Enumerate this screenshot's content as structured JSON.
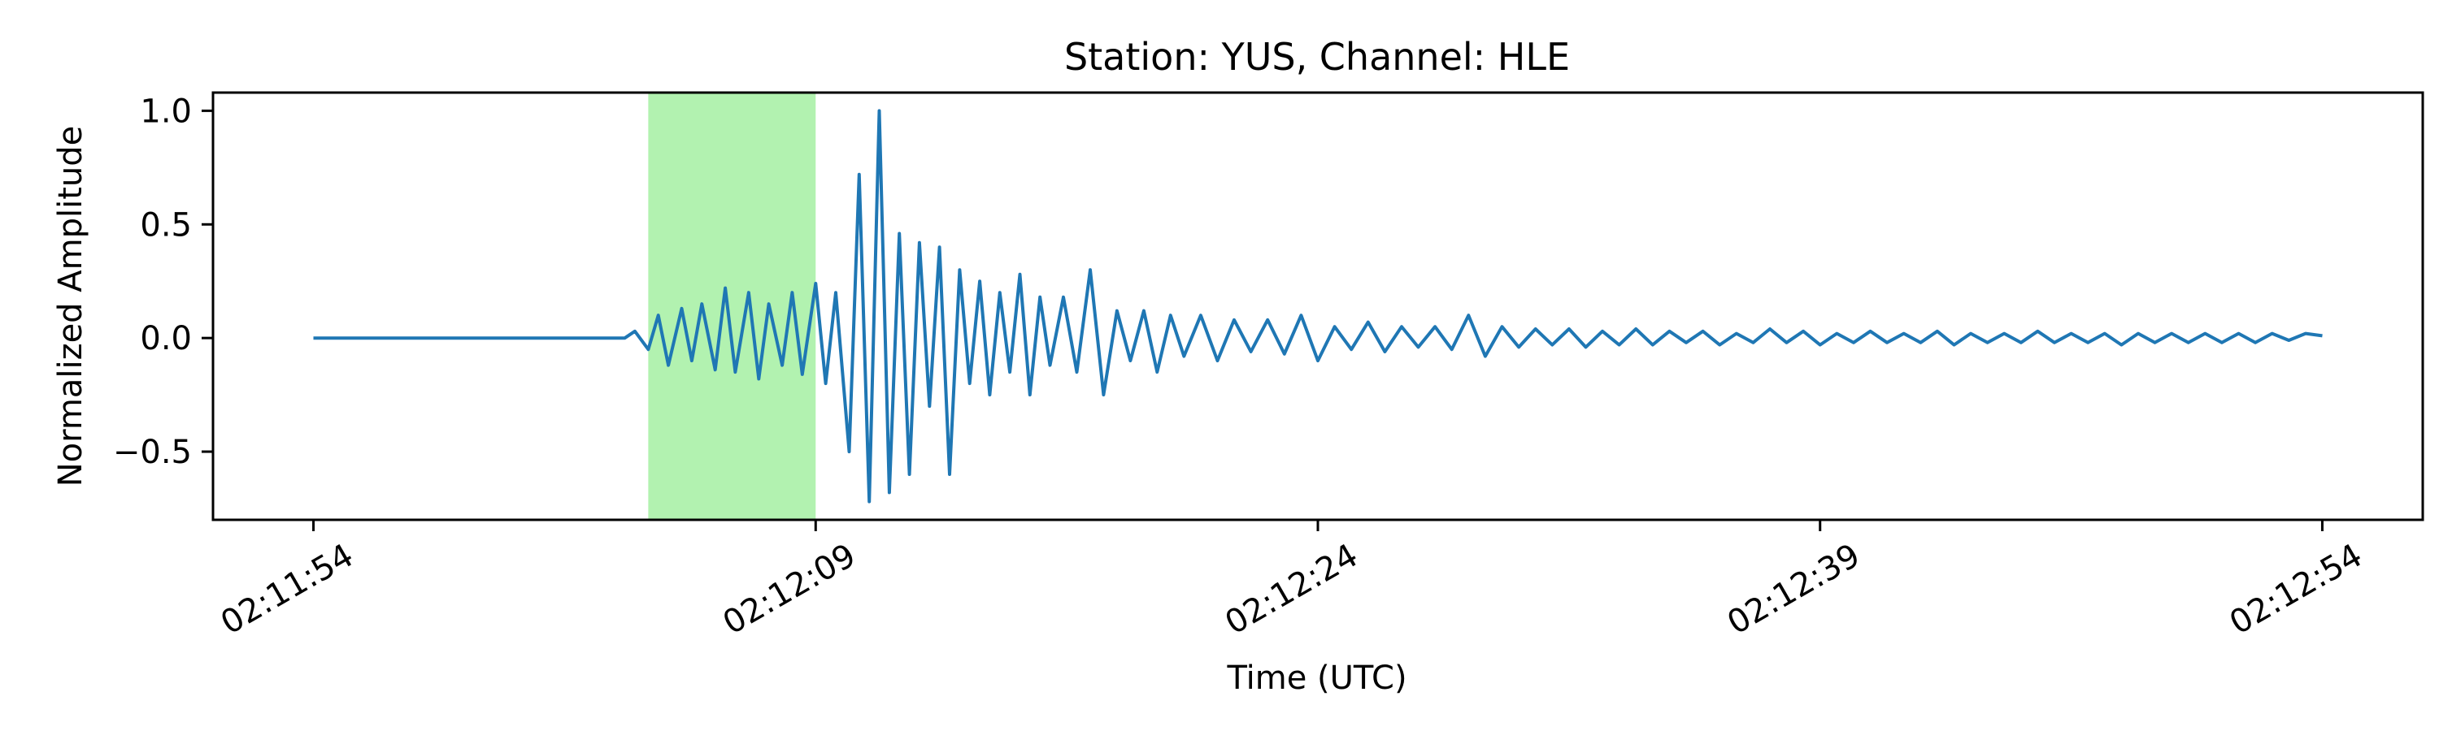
{
  "chart_data": {
    "type": "line",
    "title": "Station: YUS, Channel: HLE",
    "xlabel": "Time (UTC)",
    "ylabel": "Normalized Amplitude",
    "x_ticks": [
      {
        "t": 0,
        "label": "02:11:54"
      },
      {
        "t": 15,
        "label": "02:12:09"
      },
      {
        "t": 30,
        "label": "02:12:24"
      },
      {
        "t": 45,
        "label": "02:12:39"
      },
      {
        "t": 60,
        "label": "02:12:54"
      }
    ],
    "y_ticks": [
      {
        "v": 1.0,
        "label": "1.0"
      },
      {
        "v": 0.5,
        "label": "0.5"
      },
      {
        "v": 0.0,
        "label": "0.0"
      },
      {
        "v": -0.5,
        "label": "−0.5"
      }
    ],
    "xlim": [
      -3,
      63
    ],
    "ylim": [
      -0.8,
      1.08
    ],
    "grid": false,
    "line_color": "#1f77b4",
    "highlight": {
      "x_start": 10.0,
      "x_end": 15.0,
      "color": "#b2f2b0"
    },
    "series": [
      {
        "values_x": [
          0,
          5,
          9.3,
          9.6,
          10.0,
          10.3,
          10.6,
          11.0,
          11.3,
          11.6,
          12.0,
          12.3,
          12.6,
          13.0,
          13.3,
          13.6,
          14.0,
          14.3,
          14.6,
          15.0,
          15.3,
          15.6,
          16.0,
          16.3,
          16.6,
          16.9,
          17.2,
          17.5,
          17.8,
          18.1,
          18.4,
          18.7,
          19.0,
          19.3,
          19.6,
          19.9,
          20.2,
          20.5,
          20.8,
          21.1,
          21.4,
          21.7,
          22.0,
          22.4,
          22.8,
          23.2,
          23.6,
          24.0,
          24.4,
          24.8,
          25.2,
          25.6,
          26.0,
          26.5,
          27.0,
          27.5,
          28.0,
          28.5,
          29.0,
          29.5,
          30.0,
          30.5,
          31.0,
          31.5,
          32.0,
          32.5,
          33.0,
          33.5,
          34.0,
          34.5,
          35.0,
          35.5,
          36.0,
          36.5,
          37.0,
          37.5,
          38.0,
          38.5,
          39.0,
          39.5,
          40.0,
          40.5,
          41.0,
          41.5,
          42.0,
          42.5,
          43.0,
          43.5,
          44.0,
          44.5,
          45.0,
          45.5,
          46.0,
          46.5,
          47.0,
          47.5,
          48.0,
          48.5,
          49.0,
          49.5,
          50.0,
          50.5,
          51.0,
          51.5,
          52.0,
          52.5,
          53.0,
          53.5,
          54.0,
          54.5,
          55.0,
          55.5,
          56.0,
          56.5,
          57.0,
          57.5,
          58.0,
          58.5,
          59.0,
          59.5,
          60.0
        ],
        "values_y": [
          0.0,
          0.0,
          0.0,
          0.03,
          -0.05,
          0.1,
          -0.12,
          0.13,
          -0.1,
          0.15,
          -0.14,
          0.22,
          -0.15,
          0.2,
          -0.18,
          0.15,
          -0.12,
          0.2,
          -0.16,
          0.24,
          -0.2,
          0.2,
          -0.5,
          0.72,
          -0.72,
          1.0,
          -0.68,
          0.46,
          -0.6,
          0.42,
          -0.3,
          0.4,
          -0.6,
          0.3,
          -0.2,
          0.25,
          -0.25,
          0.2,
          -0.15,
          0.28,
          -0.25,
          0.18,
          -0.12,
          0.18,
          -0.15,
          0.3,
          -0.25,
          0.12,
          -0.1,
          0.12,
          -0.15,
          0.1,
          -0.08,
          0.1,
          -0.1,
          0.08,
          -0.06,
          0.08,
          -0.07,
          0.1,
          -0.1,
          0.05,
          -0.05,
          0.07,
          -0.06,
          0.05,
          -0.04,
          0.05,
          -0.05,
          0.1,
          -0.08,
          0.05,
          -0.04,
          0.04,
          -0.03,
          0.04,
          -0.04,
          0.03,
          -0.03,
          0.04,
          -0.03,
          0.03,
          -0.02,
          0.03,
          -0.03,
          0.02,
          -0.02,
          0.04,
          -0.02,
          0.03,
          -0.03,
          0.02,
          -0.02,
          0.03,
          -0.02,
          0.02,
          -0.02,
          0.03,
          -0.03,
          0.02,
          -0.02,
          0.02,
          -0.02,
          0.03,
          -0.02,
          0.02,
          -0.02,
          0.02,
          -0.03,
          0.02,
          -0.02,
          0.02,
          -0.02,
          0.02,
          -0.02,
          0.02,
          -0.02,
          0.02,
          -0.01,
          0.02,
          0.01
        ]
      }
    ]
  }
}
